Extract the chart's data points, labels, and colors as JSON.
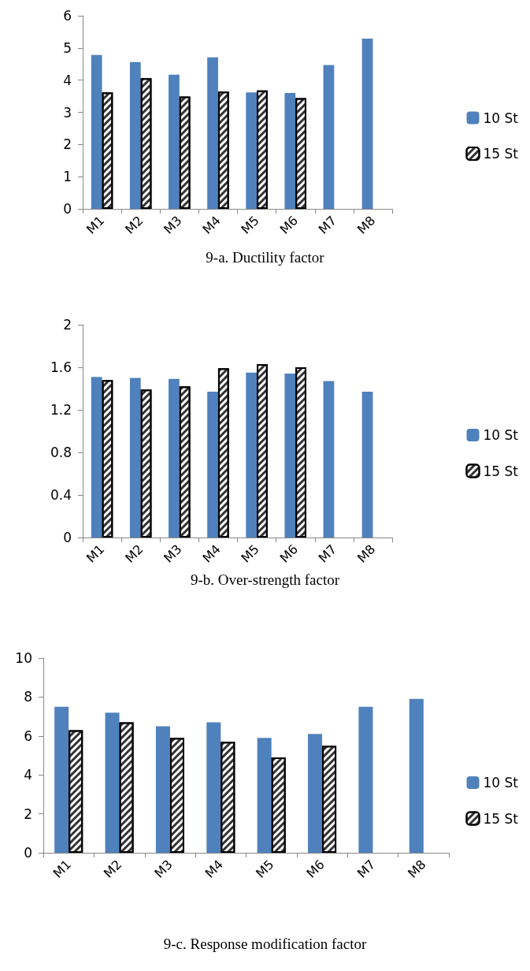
{
  "chart_data": [
    {
      "type": "bar",
      "title": "9-a. Ductility factor",
      "categories": [
        "M1",
        "M2",
        "M3",
        "M4",
        "M5",
        "M6",
        "M7",
        "M8"
      ],
      "series": [
        {
          "name": "10 St",
          "color": "#4f81bd",
          "values": [
            4.78,
            4.56,
            4.17,
            4.71,
            3.62,
            3.6,
            4.47,
            5.29
          ]
        },
        {
          "name": "15 St",
          "color": "#ffffff",
          "values": [
            3.62,
            4.06,
            3.49,
            3.64,
            3.68,
            3.44,
            null,
            null
          ]
        }
      ],
      "ylim": [
        0,
        6
      ],
      "yticks": [
        0,
        1,
        2,
        3,
        4,
        5,
        6
      ],
      "grid": false,
      "legend": "right"
    },
    {
      "type": "bar",
      "title": "9-b. Over-strength factor",
      "categories": [
        "M1",
        "M2",
        "M3",
        "M4",
        "M5",
        "M6",
        "M7",
        "M8"
      ],
      "series": [
        {
          "name": "10 St",
          "color": "#4f81bd",
          "values": [
            1.51,
            1.5,
            1.49,
            1.37,
            1.55,
            1.54,
            1.47,
            1.37
          ]
        },
        {
          "name": "15 St",
          "color": "#ffffff",
          "values": [
            1.48,
            1.39,
            1.42,
            1.59,
            1.63,
            1.6,
            null,
            null
          ]
        }
      ],
      "ylim": [
        0,
        2
      ],
      "yticks": [
        0,
        0.4,
        0.8,
        1.2,
        1.6,
        2
      ],
      "grid": false,
      "legend": "right"
    },
    {
      "type": "bar",
      "title": "9-c. Response modification factor",
      "categories": [
        "M1",
        "M2",
        "M3",
        "M4",
        "M5",
        "M6",
        "M7",
        "M8"
      ],
      "series": [
        {
          "name": "10 St",
          "color": "#4f81bd",
          "values": [
            7.5,
            7.2,
            6.5,
            6.7,
            5.9,
            6.1,
            7.5,
            7.9
          ]
        },
        {
          "name": "15 St",
          "color": "#ffffff",
          "values": [
            6.3,
            6.7,
            5.9,
            5.7,
            4.9,
            5.5,
            null,
            null
          ]
        }
      ],
      "ylim": [
        0,
        10
      ],
      "yticks": [
        0,
        2,
        4,
        6,
        8,
        10
      ],
      "grid": false,
      "legend": "right"
    }
  ]
}
